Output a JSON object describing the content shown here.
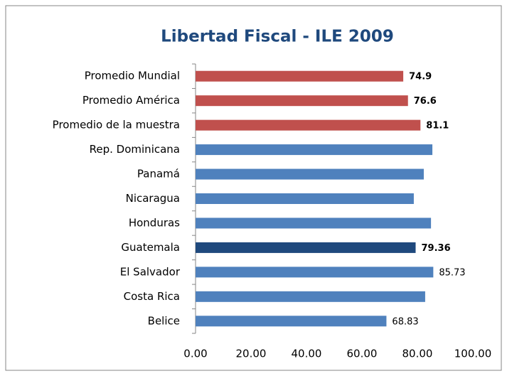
{
  "chart_data": {
    "type": "bar",
    "orientation": "horizontal",
    "title": "Libertad Fiscal - ILE 2009",
    "categories": [
      "Promedio Mundial",
      "Promedio América",
      "Promedio de la muestra",
      "Rep. Dominicana",
      "Panamá",
      "Nicaragua",
      "Honduras",
      "Guatemala",
      "El Salvador",
      "Costa Rica",
      "Belice"
    ],
    "values": [
      74.9,
      76.6,
      81.1,
      85.4,
      82.3,
      78.7,
      84.9,
      79.36,
      85.73,
      82.8,
      68.83
    ],
    "value_labels": [
      "74.9",
      "76.6",
      "81.1",
      null,
      null,
      null,
      null,
      "79.36",
      "85.73",
      null,
      "68.83"
    ],
    "label_bold": [
      true,
      true,
      true,
      false,
      false,
      false,
      false,
      true,
      false,
      false,
      false
    ],
    "colors": [
      "#c0504d",
      "#c0504d",
      "#c0504d",
      "#4f81bd",
      "#4f81bd",
      "#4f81bd",
      "#4f81bd",
      "#1f497d",
      "#4f81bd",
      "#4f81bd",
      "#4f81bd"
    ],
    "xlim": [
      0,
      100
    ],
    "xticks": [
      {
        "value": 0,
        "label": "0.00"
      },
      {
        "value": 20,
        "label": "20.00"
      },
      {
        "value": 40,
        "label": "40.00"
      },
      {
        "value": 60,
        "label": "60.00"
      },
      {
        "value": 80,
        "label": "80.00"
      },
      {
        "value": 100,
        "label": "100.00"
      }
    ],
    "grid": false
  }
}
